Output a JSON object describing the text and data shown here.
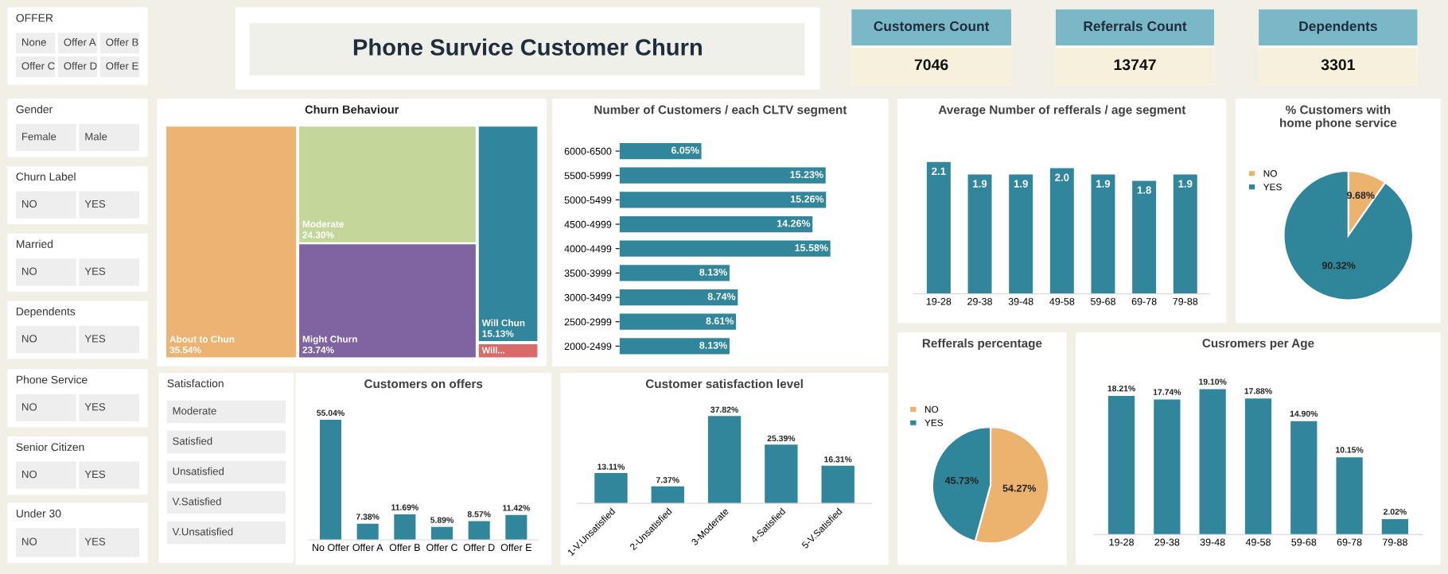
{
  "chart_data": [
    {
      "type": "other",
      "title": "OFFER",
      "annotations": [
        "None",
        "Offer A",
        "Offer B",
        "Offer C",
        "Offer D",
        "Offer E"
      ]
    },
    {
      "type": "other",
      "title": "Phone Survice Customer Churn"
    },
    {
      "type": "other",
      "title": "Customers Count",
      "annotations": [
        "7046"
      ]
    },
    {
      "type": "other",
      "title": "Referrals Count",
      "annotations": [
        "13747"
      ]
    },
    {
      "type": "other",
      "title": "Dependents",
      "annotations": [
        "3301"
      ]
    },
    {
      "type": "other",
      "title": "Gender",
      "annotations": [
        "Female",
        "Male"
      ]
    },
    {
      "type": "other",
      "title": "Churn Label",
      "annotations": [
        "NO",
        "YES"
      ]
    },
    {
      "type": "other",
      "title": "Married",
      "annotations": [
        "NO",
        "YES"
      ]
    },
    {
      "type": "other",
      "title": "Dependents",
      "annotations": [
        "NO",
        "YES"
      ]
    },
    {
      "type": "other",
      "title": "Phone Service",
      "annotations": [
        "NO",
        "YES"
      ]
    },
    {
      "type": "other",
      "title": "Senior Citizen",
      "annotations": [
        "NO",
        "YES"
      ]
    },
    {
      "type": "other",
      "title": "Under 30",
      "annotations": [
        "NO",
        "YES"
      ]
    },
    {
      "type": "other",
      "title": "Churn Behaviour",
      "categories": [
        "About to Chun",
        "Moderate",
        "Might Churn",
        "Will Chun",
        "Will..."
      ],
      "values": [
        35.54,
        24.3,
        23.74,
        15.13,
        null
      ],
      "value_labels": [
        "35.54%",
        "24.30%",
        "23.74%",
        "15.13%",
        null
      ],
      "colors": [
        "#ecb373",
        "#c4d79b",
        "#8064a2",
        "#31859c",
        "#d96a6a"
      ]
    },
    {
      "type": "bar",
      "orientation": "horizontal",
      "title": "Number of Customers / each CLTV segment",
      "categories": [
        "6000-6500",
        "5500-5999",
        "5000-5499",
        "4500-4999",
        "4000-4499",
        "3500-3999",
        "3000-3499",
        "2500-2999",
        "2000-2499"
      ],
      "values": [
        6.05,
        15.23,
        15.26,
        14.26,
        15.58,
        8.13,
        8.74,
        8.61,
        8.13
      ],
      "value_labels": [
        "6.05%",
        "15.23%",
        "15.26%",
        "14.26%",
        "15.58%",
        "8.13%",
        "8.74%",
        "8.61%",
        "8.13%"
      ],
      "color": "#31869b"
    },
    {
      "type": "bar",
      "title": "Average Number of refferals / age segment",
      "categories": [
        "19-28",
        "29-38",
        "39-48",
        "49-58",
        "59-68",
        "69-78",
        "79-88"
      ],
      "values": [
        2.1,
        1.9,
        1.9,
        2.0,
        1.9,
        1.8,
        1.9
      ],
      "value_labels": [
        "2.1",
        "1.9",
        "1.9",
        "2.0",
        "1.9",
        "1.8",
        "1.9"
      ],
      "color": "#31869b"
    },
    {
      "type": "pie",
      "title": "% Customers with home phone service",
      "categories": [
        "NO",
        "YES"
      ],
      "values": [
        9.68,
        90.32
      ],
      "value_labels": [
        "9.68%",
        "90.32%"
      ],
      "colors": [
        "#ebb36e",
        "#2f869a"
      ],
      "legend": "left"
    },
    {
      "type": "other",
      "title": "Satisfaction",
      "annotations": [
        "Moderate",
        "Satisfied",
        "Unsatisfied",
        "V.Satisfied",
        "V.Unsatisfied"
      ]
    },
    {
      "type": "bar",
      "title": "Customers on offers",
      "categories": [
        "No Offer",
        "Offer A",
        "Offer B",
        "Offer C",
        "Offer D",
        "Offer E"
      ],
      "values": [
        55.04,
        7.38,
        11.69,
        5.89,
        8.57,
        11.42
      ],
      "value_labels": [
        "55.04%",
        "7.38%",
        "11.69%",
        "5.89%",
        "8.57%",
        "11.42%"
      ],
      "color": "#31869b"
    },
    {
      "type": "bar",
      "title": "Customer satisfaction level",
      "categories": [
        "1-V.Unsatisfied",
        "2-Unsatisfied",
        "3-Moderate",
        "4-Satisfied",
        "5-V.Satisfied"
      ],
      "values": [
        13.11,
        7.37,
        37.82,
        25.39,
        16.31
      ],
      "value_labels": [
        "13.11%",
        "7.37%",
        "37.82%",
        "25.39%",
        "16.31%"
      ],
      "color": "#31869b"
    },
    {
      "type": "pie",
      "title": "Refferals percentage",
      "categories": [
        "NO",
        "YES"
      ],
      "values": [
        54.27,
        45.73
      ],
      "value_labels": [
        "54.27%",
        "45.73%"
      ],
      "colors": [
        "#ebb36e",
        "#2f869a"
      ],
      "legend": "left"
    },
    {
      "type": "bar",
      "title": "Cusromers per Age",
      "categories": [
        "19-28",
        "29-38",
        "39-48",
        "49-58",
        "59-68",
        "69-78",
        "79-88"
      ],
      "values": [
        18.21,
        17.74,
        19.1,
        17.88,
        14.9,
        10.15,
        2.02
      ],
      "value_labels": [
        "18.21%",
        "17.74%",
        "19.10%",
        "17.88%",
        "14.90%",
        "10.15%",
        "2.02%"
      ],
      "color": "#31869b"
    }
  ]
}
